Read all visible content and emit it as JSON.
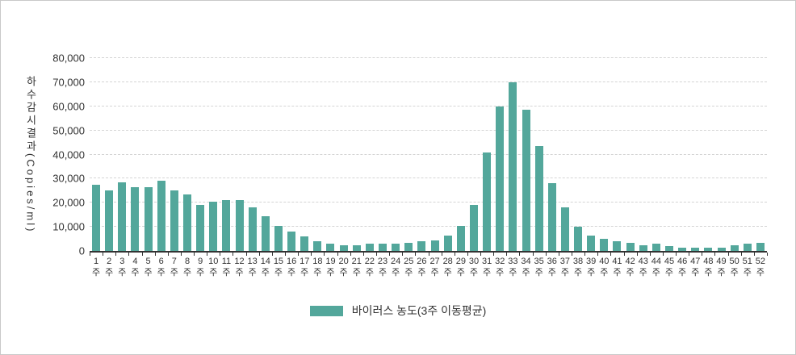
{
  "chart_data": {
    "type": "bar",
    "title": "",
    "ylabel": "하수감시결과(Copies/ml)",
    "legend": "바이러스 농도(3주 이동평균)",
    "categories": [
      "1",
      "2",
      "3",
      "4",
      "5",
      "6",
      "7",
      "8",
      "9",
      "10",
      "11",
      "12",
      "13",
      "14",
      "15",
      "16",
      "17",
      "18",
      "19",
      "20",
      "21",
      "22",
      "23",
      "24",
      "25",
      "26",
      "27",
      "28",
      "29",
      "30",
      "31",
      "32",
      "33",
      "34",
      "35",
      "36",
      "37",
      "38",
      "39",
      "40",
      "41",
      "42",
      "43",
      "44",
      "45",
      "46",
      "47",
      "48",
      "49",
      "50",
      "51",
      "52"
    ],
    "category_suffix": "주",
    "values": [
      27500,
      25000,
      28500,
      26500,
      26500,
      29000,
      25000,
      23500,
      19000,
      20500,
      21000,
      21000,
      18000,
      14500,
      10500,
      8000,
      6000,
      4000,
      3000,
      2500,
      2500,
      3000,
      3000,
      3000,
      3500,
      4000,
      4500,
      6500,
      10500,
      19000,
      41000,
      60000,
      70000,
      58500,
      43500,
      28000,
      18000,
      10000,
      6500,
      5000,
      4000,
      3500,
      2500,
      3000,
      2000,
      1500,
      1500,
      1500,
      1500,
      2500,
      3000,
      3500
    ],
    "ylim": [
      0,
      80000
    ],
    "y_tick_step": 10000,
    "y_tick_labels": [
      "0",
      "10,000",
      "20,000",
      "30,000",
      "40,000",
      "50,000",
      "60,000",
      "70,000",
      "80,000"
    ],
    "grid": "horizontal-dashed",
    "legend_position": "bottom-center",
    "colors": {
      "bar": "#53A79B",
      "grid": "#d4d4d4",
      "axis": "#333333",
      "text": "#333333",
      "card_border": "#c8c8c8"
    }
  }
}
